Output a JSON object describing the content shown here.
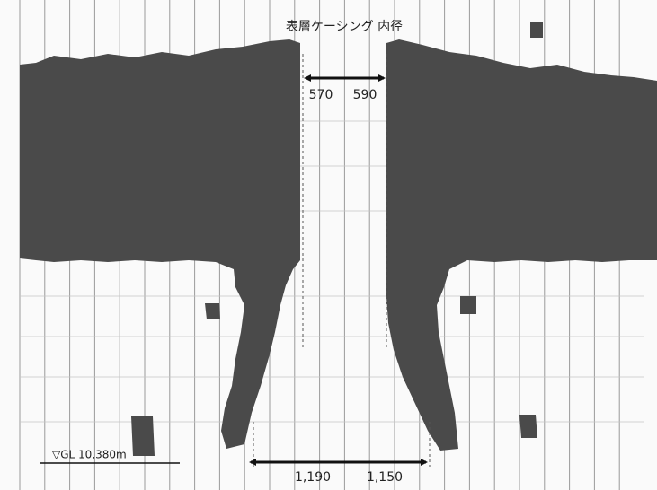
{
  "header": {
    "title": "表層ケーシング 内径"
  },
  "top_dimension": {
    "left": "570",
    "right": "590"
  },
  "bottom_dimension": {
    "left": "1,190",
    "right": "1,150"
  },
  "depth_label": "▽GL 10,380m"
}
